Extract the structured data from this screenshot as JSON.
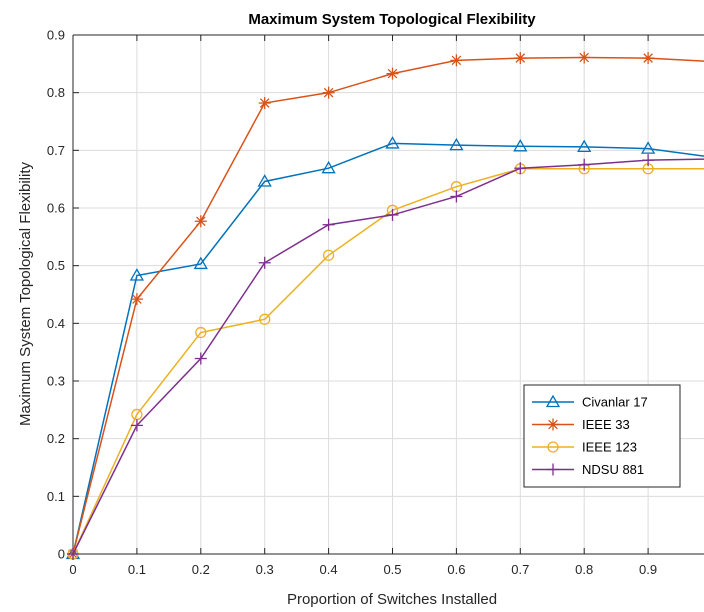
{
  "chart_data": {
    "type": "line",
    "title": "Maximum System Topological Flexibility",
    "xlabel": "Proportion of Switches Installed",
    "ylabel": "Maximum System Topological Flexibility",
    "xlim": [
      0,
      1
    ],
    "ylim": [
      0,
      0.9
    ],
    "xticks": [
      "0",
      "0.1",
      "0.2",
      "0.3",
      "0.4",
      "0.5",
      "0.6",
      "0.7",
      "0.8",
      "0.9"
    ],
    "xtick_values": [
      0,
      0.1,
      0.2,
      0.3,
      0.4,
      0.5,
      0.6,
      0.7,
      0.8,
      0.9
    ],
    "yticks": [
      "0",
      "0.1",
      "0.2",
      "0.3",
      "0.4",
      "0.5",
      "0.6",
      "0.7",
      "0.8",
      "0.9"
    ],
    "ytick_values": [
      0,
      0.1,
      0.2,
      0.3,
      0.4,
      0.5,
      0.6,
      0.7,
      0.8,
      0.9
    ],
    "grid": true,
    "legend_position": "lower-right",
    "x": [
      0,
      0.1,
      0.2,
      0.3,
      0.4,
      0.5,
      0.6,
      0.7,
      0.8,
      0.9,
      1.0
    ],
    "series": [
      {
        "name": "Civanlar 17",
        "color": "#0072BD",
        "marker": "triangle",
        "values": [
          0,
          0.483,
          0.503,
          0.646,
          0.669,
          0.712,
          0.709,
          0.707,
          0.706,
          0.703,
          0.688
        ]
      },
      {
        "name": "IEEE 33",
        "color": "#D95319",
        "marker": "asterisk",
        "values": [
          0,
          0.442,
          0.577,
          0.782,
          0.8,
          0.833,
          0.856,
          0.86,
          0.861,
          0.86,
          0.854
        ]
      },
      {
        "name": "IEEE 123",
        "color": "#EDB120",
        "marker": "circle",
        "values": [
          0,
          0.242,
          0.384,
          0.407,
          0.518,
          0.596,
          0.637,
          0.668,
          0.668,
          0.668,
          0.668
        ]
      },
      {
        "name": "NDSU 881",
        "color": "#7E2F8E",
        "marker": "plus",
        "values": [
          0,
          0.223,
          0.339,
          0.505,
          0.571,
          0.588,
          0.62,
          0.669,
          0.675,
          0.683,
          0.685
        ]
      }
    ]
  }
}
